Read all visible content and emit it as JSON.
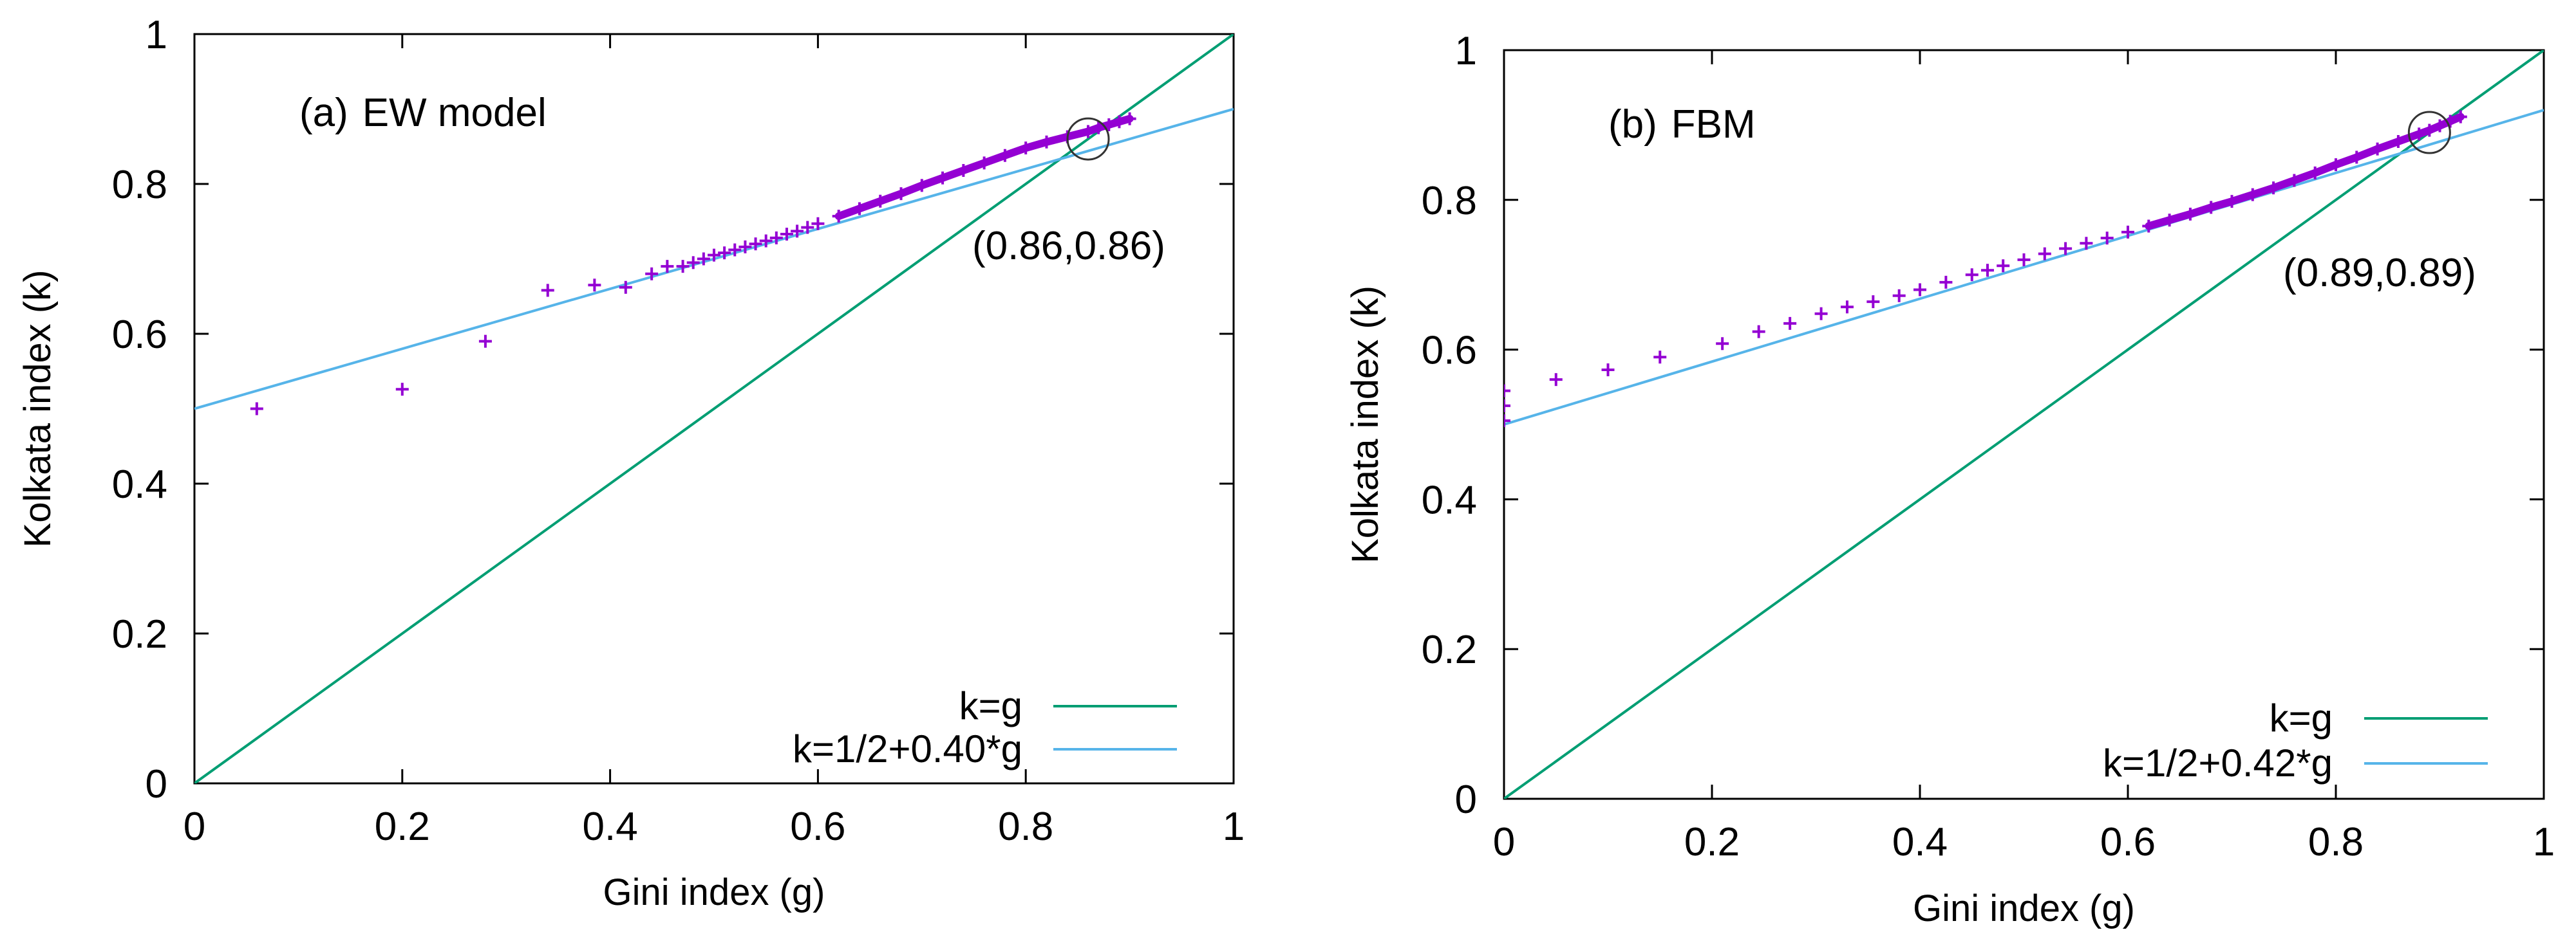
{
  "chart_data": [
    {
      "type": "scatter",
      "panel_label": "(a)",
      "title": "EW model",
      "xlabel": "Gini index (g)",
      "ylabel": "Kolkata index (k)",
      "xlim": [
        0,
        1
      ],
      "ylim": [
        0,
        1
      ],
      "xticks": [
        "0",
        "0.2",
        "0.4",
        "0.6",
        "0.8",
        "1"
      ],
      "yticks": [
        "0",
        "0.2",
        "0.4",
        "0.6",
        "0.8",
        "1"
      ],
      "series": [
        {
          "name": "data",
          "marker": "+",
          "color": "#9400d3",
          "x": [
            0.06,
            0.2,
            0.28,
            0.34,
            0.385,
            0.415,
            0.44,
            0.455,
            0.47,
            0.48,
            0.49,
            0.5,
            0.51,
            0.52,
            0.53,
            0.54,
            0.55,
            0.56,
            0.57,
            0.58,
            0.59,
            0.6,
            0.62,
            0.64,
            0.66,
            0.68,
            0.7,
            0.72,
            0.74,
            0.76,
            0.78,
            0.8,
            0.82,
            0.84,
            0.86,
            0.87,
            0.88,
            0.89,
            0.9
          ],
          "y": [
            0.5,
            0.526,
            0.59,
            0.658,
            0.665,
            0.662,
            0.68,
            0.69,
            0.69,
            0.695,
            0.7,
            0.705,
            0.708,
            0.712,
            0.716,
            0.72,
            0.724,
            0.728,
            0.733,
            0.737,
            0.742,
            0.747,
            0.757,
            0.767,
            0.777,
            0.787,
            0.798,
            0.808,
            0.818,
            0.828,
            0.838,
            0.848,
            0.856,
            0.863,
            0.87,
            0.875,
            0.879,
            0.883,
            0.887
          ]
        },
        {
          "name": "k=g",
          "type": "line",
          "color": "#009e73",
          "x": [
            0,
            1
          ],
          "y": [
            0,
            1
          ]
        },
        {
          "name": "k=1/2+0.40*g",
          "type": "line",
          "color": "#56b4e9",
          "x": [
            0,
            1
          ],
          "y": [
            0.5,
            0.9
          ]
        }
      ],
      "annotations": [
        {
          "text": "(0.86,0.86)",
          "x": 0.86,
          "y": 0.86,
          "marker": "circle"
        }
      ],
      "legend_position": "bottom-right"
    },
    {
      "type": "scatter",
      "panel_label": "(b)",
      "title": "FBM",
      "xlabel": "Gini index (g)",
      "ylabel": "Kolkata index (k)",
      "xlim": [
        0,
        1
      ],
      "ylim": [
        0,
        1
      ],
      "xticks": [
        "0",
        "0.2",
        "0.4",
        "0.6",
        "0.8",
        "1"
      ],
      "yticks": [
        "0",
        "0.2",
        "0.4",
        "0.6",
        "0.8",
        "1"
      ],
      "series": [
        {
          "name": "data",
          "marker": "+",
          "color": "#9400d3",
          "x": [
            0.0,
            0.0,
            0.0,
            0.05,
            0.1,
            0.15,
            0.21,
            0.245,
            0.275,
            0.305,
            0.33,
            0.355,
            0.38,
            0.4,
            0.425,
            0.45,
            0.465,
            0.48,
            0.5,
            0.52,
            0.54,
            0.56,
            0.58,
            0.6,
            0.62,
            0.64,
            0.66,
            0.68,
            0.7,
            0.72,
            0.74,
            0.76,
            0.78,
            0.8,
            0.82,
            0.84,
            0.86,
            0.88,
            0.89,
            0.9,
            0.91,
            0.92
          ],
          "y": [
            0.505,
            0.525,
            0.545,
            0.56,
            0.573,
            0.59,
            0.608,
            0.624,
            0.635,
            0.648,
            0.657,
            0.664,
            0.672,
            0.68,
            0.69,
            0.7,
            0.706,
            0.712,
            0.72,
            0.728,
            0.735,
            0.742,
            0.749,
            0.757,
            0.765,
            0.773,
            0.781,
            0.79,
            0.798,
            0.807,
            0.816,
            0.826,
            0.836,
            0.847,
            0.857,
            0.868,
            0.878,
            0.888,
            0.893,
            0.899,
            0.905,
            0.911
          ]
        },
        {
          "name": "k=g",
          "type": "line",
          "color": "#009e73",
          "x": [
            0,
            1
          ],
          "y": [
            0,
            1
          ]
        },
        {
          "name": "k=1/2+0.42*g",
          "type": "line",
          "color": "#56b4e9",
          "x": [
            0,
            1
          ],
          "y": [
            0.5,
            0.92
          ]
        }
      ],
      "annotations": [
        {
          "text": "(0.89,0.89)",
          "x": 0.89,
          "y": 0.89,
          "marker": "circle"
        }
      ],
      "legend_position": "bottom-right"
    }
  ]
}
